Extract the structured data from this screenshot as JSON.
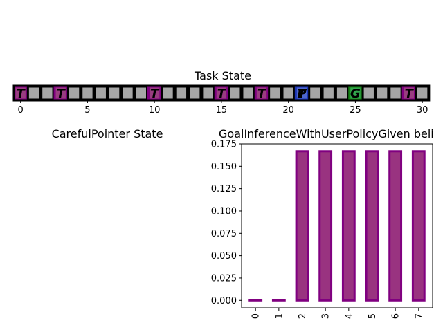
{
  "chart_data": [
    {
      "type": "grid",
      "title": "Task State",
      "n_cells": 31,
      "xticks": [
        0,
        5,
        10,
        15,
        20,
        25,
        30
      ],
      "cells": [
        {
          "index": 0,
          "label": "T",
          "kind": "target"
        },
        {
          "index": 3,
          "label": "T",
          "kind": "target"
        },
        {
          "index": 10,
          "label": "T",
          "kind": "target"
        },
        {
          "index": 15,
          "label": "T",
          "kind": "target"
        },
        {
          "index": 18,
          "label": "T",
          "kind": "target"
        },
        {
          "index": 21,
          "label": "P",
          "kind": "pointer",
          "overlay": "T"
        },
        {
          "index": 25,
          "label": "G",
          "kind": "goal"
        },
        {
          "index": 29,
          "label": "T",
          "kind": "target"
        }
      ],
      "colors": {
        "empty": "#a6a6a6",
        "target_fill": "#993d80",
        "target_edge": "#800080",
        "pointer_fill": "#4d66cc",
        "pointer_edge": "#1a33b3",
        "goal_fill": "#33a64d",
        "goal_edge": "#138013"
      }
    },
    {
      "type": "empty",
      "title": "CarefulPointer State"
    },
    {
      "type": "bar",
      "title": "GoalInferenceWithUserPolicyGiven beli",
      "categories": [
        "0",
        "1",
        "2",
        "3",
        "4",
        "5",
        "6",
        "7"
      ],
      "values": [
        0.0,
        0.0,
        0.16667,
        0.16667,
        0.16667,
        0.16667,
        0.16667,
        0.16667
      ],
      "yticks": [
        "0.000",
        "0.025",
        "0.050",
        "0.075",
        "0.100",
        "0.125",
        "0.150",
        "0.175"
      ],
      "ylim": [
        -0.0083,
        0.175
      ],
      "colors": {
        "fill": "#993380",
        "edge": "#800080"
      }
    }
  ]
}
